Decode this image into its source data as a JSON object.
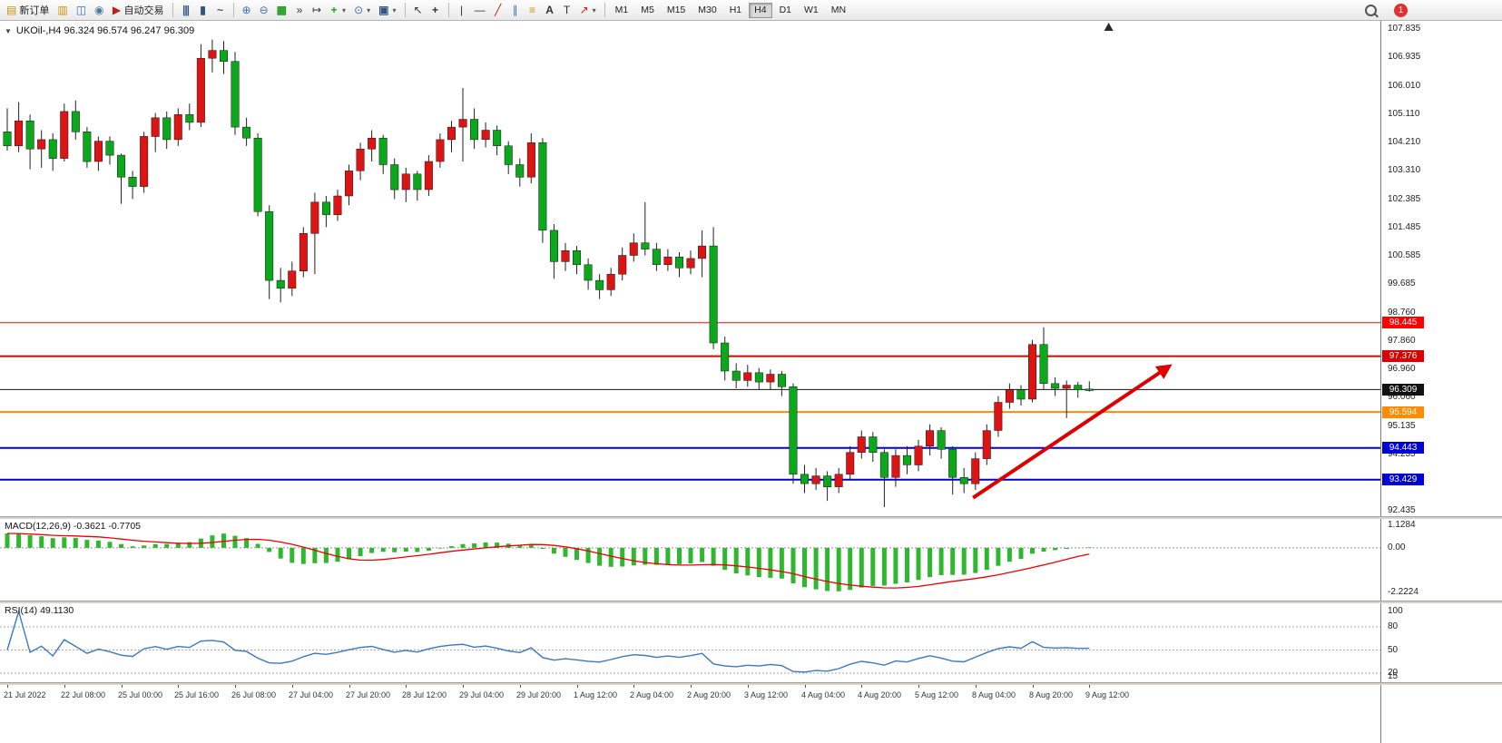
{
  "toolbar": {
    "new_order_label": "新订单",
    "autotrading_label": "自动交易",
    "timeframes": [
      "M1",
      "M5",
      "M15",
      "M30",
      "H1",
      "H4",
      "D1",
      "W1",
      "MN"
    ],
    "active_timeframe": "H4",
    "notification_count": "1",
    "icons": {
      "new_order": "▤",
      "profiles": "▥",
      "community": "◫",
      "broadcast": "◉",
      "autotrading": "▶",
      "bar_chart": "|||",
      "candle_chart": "▮",
      "line_chart": "~",
      "zoom_in": "⊕",
      "zoom_out": "⊖",
      "tile_windows": "▦",
      "auto_scroll": "»",
      "chart_shift": "↦",
      "indicators_add": "+",
      "periods": "⊙",
      "templates": "▣",
      "dropdown": "▾",
      "cursor": "↖",
      "crosshair": "+",
      "vertical_line": "|",
      "horizontal_line": "—",
      "trendline": "╱",
      "channel": "∥",
      "fibonacci": "≡",
      "text": "A",
      "label": "T",
      "shapes": "↗",
      "collapse": "▼"
    }
  },
  "chart": {
    "title": "UKOil-,H4 96.324 96.574 96.247 96.309",
    "collapse_glyph": "▼"
  },
  "chart_data": {
    "type": "candlestick",
    "symbol": "UKOil-",
    "timeframe": "H4",
    "current_bar": {
      "open": 96.324,
      "high": 96.574,
      "low": 96.247,
      "close": 96.309
    },
    "colors": {
      "up": "#dd1414",
      "down": "#0ca81c",
      "wick": "#222222",
      "macd_bar": "#2fb82f",
      "macd_signal": "#ee0000",
      "rsi_line": "#3a78c3"
    },
    "price_axis_labels": [
      "107.835",
      "106.935",
      "106.010",
      "105.110",
      "104.210",
      "103.310",
      "102.385",
      "101.485",
      "100.585",
      "99.685",
      "98.760",
      "97.860",
      "96.960",
      "96.060",
      "95.135",
      "94.235",
      "93.335",
      "92.435"
    ],
    "hlines": [
      {
        "value": 98.445,
        "label": "98.445",
        "color": "#ff0000",
        "width": 1
      },
      {
        "value": 97.376,
        "label": "97.376",
        "color": "#dd0000",
        "width": 2
      },
      {
        "value": 96.309,
        "label": "96.309",
        "color": "#111111",
        "width": 1
      },
      {
        "value": 95.594,
        "label": "95.594",
        "color": "#ff8c00",
        "width": 2
      },
      {
        "value": 94.443,
        "label": "94.443",
        "color": "#0000dd",
        "width": 2
      },
      {
        "value": 93.429,
        "label": "93.429",
        "color": "#0000dd",
        "width": 2
      }
    ],
    "candles": [
      [
        104.55,
        105.3,
        103.95,
        104.1
      ],
      [
        104.1,
        105.5,
        103.9,
        104.9
      ],
      [
        104.9,
        105.1,
        103.35,
        104.0
      ],
      [
        104.0,
        104.6,
        103.4,
        104.3
      ],
      [
        104.3,
        104.5,
        103.3,
        103.7
      ],
      [
        103.7,
        105.45,
        103.6,
        105.2
      ],
      [
        105.2,
        105.55,
        104.3,
        104.55
      ],
      [
        104.55,
        104.7,
        103.4,
        103.6
      ],
      [
        103.6,
        104.4,
        103.3,
        104.25
      ],
      [
        104.25,
        104.4,
        103.5,
        103.8
      ],
      [
        103.8,
        103.85,
        102.25,
        103.1
      ],
      [
        103.1,
        103.3,
        102.4,
        102.8
      ],
      [
        102.8,
        104.55,
        102.6,
        104.4
      ],
      [
        104.4,
        105.15,
        103.9,
        105.0
      ],
      [
        105.0,
        105.2,
        104.0,
        104.3
      ],
      [
        104.3,
        105.3,
        104.1,
        105.1
      ],
      [
        105.1,
        105.45,
        104.6,
        104.85
      ],
      [
        104.85,
        107.35,
        104.7,
        106.9
      ],
      [
        106.9,
        107.5,
        106.45,
        107.15
      ],
      [
        107.15,
        107.45,
        106.4,
        106.8
      ],
      [
        106.8,
        107.1,
        104.45,
        104.7
      ],
      [
        104.7,
        105.0,
        104.1,
        104.35
      ],
      [
        104.35,
        104.5,
        101.85,
        102.0
      ],
      [
        102.0,
        102.2,
        99.2,
        99.8
      ],
      [
        99.8,
        100.2,
        99.1,
        99.55
      ],
      [
        99.55,
        100.4,
        99.3,
        100.1
      ],
      [
        100.1,
        101.5,
        99.9,
        101.3
      ],
      [
        101.3,
        102.6,
        100.0,
        102.3
      ],
      [
        102.3,
        102.5,
        101.5,
        101.9
      ],
      [
        101.9,
        102.7,
        101.7,
        102.5
      ],
      [
        102.5,
        103.5,
        102.2,
        103.3
      ],
      [
        103.3,
        104.2,
        103.0,
        104.0
      ],
      [
        104.0,
        104.6,
        103.6,
        104.35
      ],
      [
        104.35,
        104.45,
        103.2,
        103.5
      ],
      [
        103.5,
        103.7,
        102.4,
        102.7
      ],
      [
        102.7,
        103.4,
        102.3,
        103.2
      ],
      [
        103.2,
        103.3,
        102.35,
        102.7
      ],
      [
        102.7,
        103.8,
        102.5,
        103.6
      ],
      [
        103.6,
        104.5,
        103.4,
        104.3
      ],
      [
        104.3,
        104.9,
        103.9,
        104.7
      ],
      [
        104.7,
        105.95,
        103.6,
        104.95
      ],
      [
        104.95,
        105.3,
        104.0,
        104.3
      ],
      [
        104.3,
        104.85,
        104.05,
        104.6
      ],
      [
        104.6,
        104.75,
        103.8,
        104.1
      ],
      [
        104.1,
        104.25,
        103.2,
        103.5
      ],
      [
        103.5,
        103.7,
        102.8,
        103.1
      ],
      [
        103.1,
        104.5,
        102.9,
        104.2
      ],
      [
        104.2,
        104.35,
        101.0,
        101.4
      ],
      [
        101.4,
        101.6,
        99.85,
        100.4
      ],
      [
        100.4,
        101.0,
        100.1,
        100.75
      ],
      [
        100.75,
        100.9,
        100.0,
        100.3
      ],
      [
        100.3,
        100.5,
        99.5,
        99.8
      ],
      [
        99.8,
        100.0,
        99.2,
        99.5
      ],
      [
        99.5,
        100.2,
        99.3,
        100.0
      ],
      [
        100.0,
        100.85,
        99.8,
        100.6
      ],
      [
        100.6,
        101.3,
        100.4,
        101.0
      ],
      [
        101.0,
        102.3,
        100.6,
        100.8
      ],
      [
        100.8,
        101.0,
        100.1,
        100.3
      ],
      [
        100.3,
        100.8,
        100.1,
        100.55
      ],
      [
        100.55,
        100.7,
        99.9,
        100.2
      ],
      [
        100.2,
        100.75,
        100.0,
        100.5
      ],
      [
        100.5,
        101.4,
        99.9,
        100.9
      ],
      [
        100.9,
        101.5,
        97.6,
        97.8
      ],
      [
        97.8,
        98.0,
        96.6,
        96.9
      ],
      [
        96.9,
        97.15,
        96.35,
        96.6
      ],
      [
        96.6,
        97.1,
        96.4,
        96.85
      ],
      [
        96.85,
        97.0,
        96.3,
        96.55
      ],
      [
        96.55,
        96.95,
        96.3,
        96.8
      ],
      [
        96.8,
        96.9,
        96.1,
        96.4
      ],
      [
        96.4,
        96.5,
        93.3,
        93.6
      ],
      [
        93.6,
        93.9,
        93.0,
        93.3
      ],
      [
        93.3,
        93.8,
        93.1,
        93.55
      ],
      [
        93.55,
        93.7,
        92.75,
        93.2
      ],
      [
        93.2,
        93.8,
        93.0,
        93.6
      ],
      [
        93.6,
        94.5,
        93.4,
        94.3
      ],
      [
        94.3,
        95.0,
        94.1,
        94.8
      ],
      [
        94.8,
        94.95,
        94.0,
        94.3
      ],
      [
        94.3,
        94.4,
        92.55,
        93.5
      ],
      [
        93.5,
        94.4,
        93.2,
        94.2
      ],
      [
        94.2,
        94.5,
        93.6,
        93.9
      ],
      [
        93.9,
        94.7,
        93.7,
        94.5
      ],
      [
        94.5,
        95.2,
        94.2,
        95.0
      ],
      [
        95.0,
        95.1,
        94.1,
        94.4
      ],
      [
        94.4,
        94.5,
        92.95,
        93.5
      ],
      [
        93.5,
        93.8,
        93.0,
        93.3
      ],
      [
        93.3,
        94.3,
        93.1,
        94.1
      ],
      [
        94.1,
        95.2,
        93.9,
        95.0
      ],
      [
        95.0,
        96.1,
        94.8,
        95.9
      ],
      [
        95.9,
        96.5,
        95.7,
        96.3
      ],
      [
        96.3,
        96.45,
        95.8,
        96.0
      ],
      [
        96.0,
        97.9,
        95.9,
        97.75
      ],
      [
        97.75,
        98.3,
        96.3,
        96.5
      ],
      [
        96.5,
        96.7,
        96.1,
        96.35
      ],
      [
        96.35,
        96.6,
        95.4,
        96.45
      ],
      [
        96.45,
        96.55,
        96.05,
        96.3
      ],
      [
        96.324,
        96.574,
        96.247,
        96.309
      ]
    ],
    "time_labels": [
      {
        "i": 0,
        "label": "21 Jul 2022"
      },
      {
        "i": 5,
        "label": "22 Jul 08:00"
      },
      {
        "i": 10,
        "label": "25 Jul 00:00"
      },
      {
        "i": 15,
        "label": "25 Jul 16:00"
      },
      {
        "i": 20,
        "label": "26 Jul 08:00"
      },
      {
        "i": 25,
        "label": "27 Jul 04:00"
      },
      {
        "i": 30,
        "label": "27 Jul 20:00"
      },
      {
        "i": 35,
        "label": "28 Jul 12:00"
      },
      {
        "i": 40,
        "label": "29 Jul 04:00"
      },
      {
        "i": 45,
        "label": "29 Jul 20:00"
      },
      {
        "i": 50,
        "label": "1 Aug 12:00"
      },
      {
        "i": 55,
        "label": "2 Aug 04:00"
      },
      {
        "i": 60,
        "label": "2 Aug 20:00"
      },
      {
        "i": 65,
        "label": "3 Aug 12:00"
      },
      {
        "i": 70,
        "label": "4 Aug 04:00"
      },
      {
        "i": 75,
        "label": "4 Aug 20:00"
      },
      {
        "i": 80,
        "label": "5 Aug 12:00"
      },
      {
        "i": 85,
        "label": "8 Aug 04:00"
      },
      {
        "i": 90,
        "label": "8 Aug 20:00"
      },
      {
        "i": 95,
        "label": "9 Aug 12:00"
      }
    ],
    "arrow": {
      "from_index": 84.8,
      "from_price": 92.85,
      "to_index": 102,
      "to_price": 97.05,
      "color": "#dd0000"
    },
    "shift_marker_index": 96.7,
    "macd": {
      "label": "MACD(12,26,9) -0.3621 -0.7705",
      "fast": 12,
      "slow": 26,
      "signal_period": 9,
      "value": -0.3621,
      "signal": -0.7705,
      "max": 1.1284,
      "min": -2.2224,
      "axis_labels": [
        {
          "v": 1.1284,
          "label": "1.1284"
        },
        {
          "v": 0,
          "label": "0.00"
        },
        {
          "v": -2.2224,
          "label": "-2.2224"
        }
      ]
    },
    "rsi": {
      "label": "RSI(14) 49.1130",
      "period": 14,
      "value": 49.113,
      "levels": [
        80,
        50,
        20
      ],
      "axis_labels": [
        {
          "v": 100,
          "label": "100"
        },
        {
          "v": 80,
          "label": "80"
        },
        {
          "v": 50,
          "label": "50"
        },
        {
          "v": 20,
          "label": "20"
        },
        {
          "v": 15,
          "label": "15"
        }
      ]
    }
  }
}
